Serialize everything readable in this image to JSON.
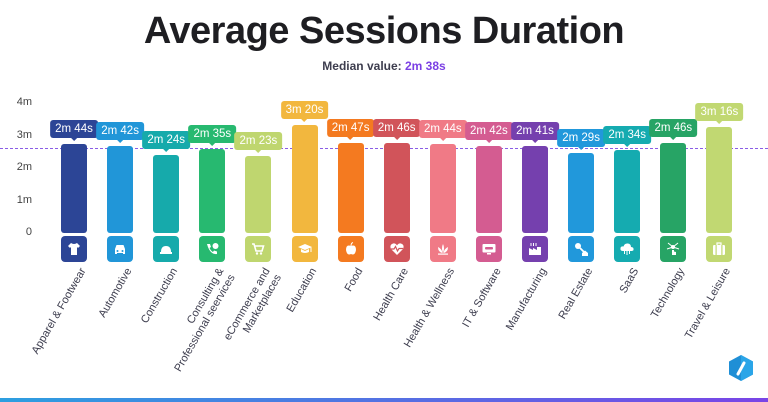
{
  "header": {
    "title": "Average Sessions Duration",
    "subtitle_label": "Median value:",
    "subtitle_value": "2m 38s"
  },
  "colors": {
    "median_line": "#8a5ce6",
    "median_text": "#7b3fe4",
    "footer_gradient_start": "#2d9fe0",
    "footer_gradient_end": "#7a44e6"
  },
  "y_axis": {
    "ticks": [
      "4m",
      "3m",
      "2m",
      "1m",
      "0"
    ]
  },
  "bars": [
    {
      "label": "Apparel & Footwear",
      "value_label": "2m 44s",
      "color": "#2c4596",
      "icon": "tshirt-icon"
    },
    {
      "label": "Automotive",
      "value_label": "2m 42s",
      "color": "#2196d8",
      "icon": "car-icon"
    },
    {
      "label": "Construction",
      "value_label": "2m 24s",
      "color": "#16aaab",
      "icon": "hard-hat-icon"
    },
    {
      "label": "Consulting & Professional seervices",
      "value_label": "2m 35s",
      "color": "#27b970",
      "icon": "phone-chat-icon"
    },
    {
      "label": "eCommerce and Marketplaces",
      "value_label": "2m 23s",
      "color": "#bfd66f",
      "icon": "shopping-cart-icon"
    },
    {
      "label": "Education",
      "value_label": "3m 20s",
      "color": "#f2b73e",
      "icon": "graduation-cap-icon"
    },
    {
      "label": "Food",
      "value_label": "2m 47s",
      "color": "#f47a20",
      "icon": "apple-icon"
    },
    {
      "label": "Health Care",
      "value_label": "2m 46s",
      "color": "#d1545a",
      "icon": "heart-pulse-icon"
    },
    {
      "label": "Health & Wellness",
      "value_label": "2m 44s",
      "color": "#f07a86",
      "icon": "lotus-icon"
    },
    {
      "label": "IT & Software",
      "value_label": "2m 42s",
      "color": "#d45c91",
      "icon": "monitor-code-icon"
    },
    {
      "label": "Manufacturing",
      "value_label": "2m 41s",
      "color": "#7540ae",
      "icon": "factory-icon"
    },
    {
      "label": "Real Estate",
      "value_label": "2m 29s",
      "color": "#2198db",
      "icon": "house-key-icon"
    },
    {
      "label": "SaaS",
      "value_label": "2m 34s",
      "color": "#15abb0",
      "icon": "cloud-icon"
    },
    {
      "label": "Technology",
      "value_label": "2m 46s",
      "color": "#27a465",
      "icon": "network-touch-icon"
    },
    {
      "label": "Travel & Leisure",
      "value_label": "3m 16s",
      "color": "#c1d872",
      "icon": "suitcase-icon"
    }
  ],
  "chart_data": {
    "type": "bar",
    "title": "Average Sessions Duration",
    "subtitle": "Median value: 2m 38s",
    "xlabel": "",
    "ylabel": "",
    "ylim": [
      0,
      240
    ],
    "y_unit": "seconds",
    "y_ticks": [
      "0",
      "1m",
      "2m",
      "3m",
      "4m"
    ],
    "grid": false,
    "legend": null,
    "categories": [
      "Apparel & Footwear",
      "Automotive",
      "Construction",
      "Consulting & Professional seervices",
      "eCommerce and Marketplaces",
      "Education",
      "Food",
      "Health Care",
      "Health & Wellness",
      "IT & Software",
      "Manufacturing",
      "Real Estate",
      "SaaS",
      "Technology",
      "Travel & Leisure"
    ],
    "values": [
      164,
      162,
      144,
      155,
      143,
      200,
      167,
      166,
      164,
      162,
      161,
      149,
      154,
      166,
      196
    ],
    "value_labels": [
      "2m 44s",
      "2m 42s",
      "2m 24s",
      "2m 35s",
      "2m 23s",
      "3m 20s",
      "2m 47s",
      "2m 46s",
      "2m 44s",
      "2m 42s",
      "2m 41s",
      "2m 29s",
      "2m 34s",
      "2m 46s",
      "3m 16s"
    ],
    "annotations": [
      {
        "type": "hline",
        "y": 158,
        "label": "Median value: 2m 38s",
        "style": "dashed",
        "color": "#8a5ce6"
      }
    ]
  }
}
